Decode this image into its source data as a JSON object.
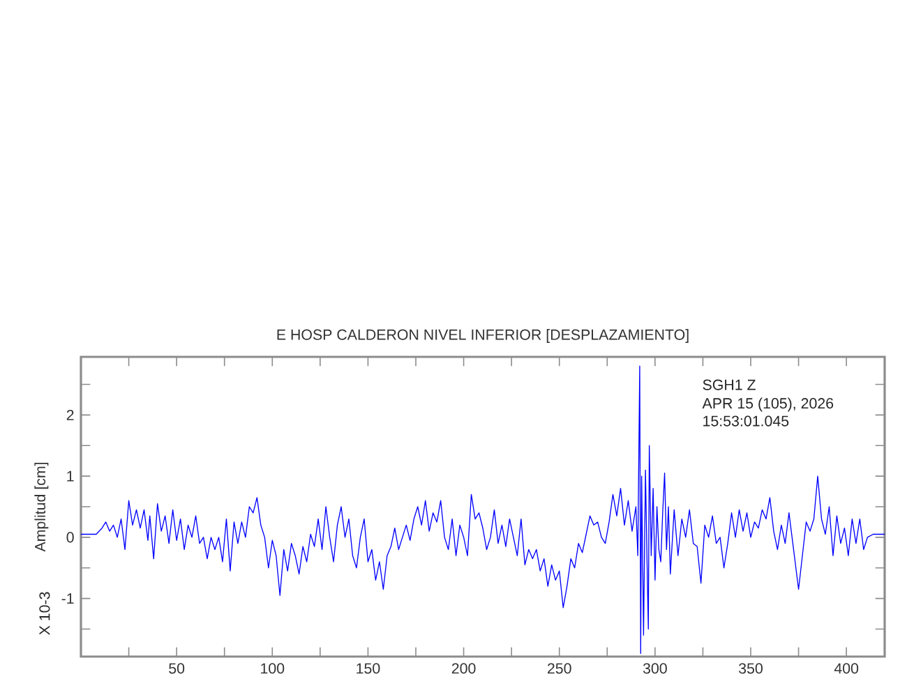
{
  "chart_data": {
    "type": "line",
    "title": "E HOSP CALDERON NIVEL INFERIOR [DESPLAZAMIENTO]",
    "ylabel": "Amplitud [cm]",
    "annotations": [
      "SGH1   Z",
      "APR 15 (105), 2026",
      "15:53:01.045",
      "X 10-3"
    ],
    "xlim": [
      0,
      420
    ],
    "ylim": [
      -1.95,
      2.95
    ],
    "xticks": [
      {
        "value": 25,
        "label": null
      },
      50,
      {
        "value": 75,
        "label": null
      },
      100,
      {
        "value": 125,
        "label": null
      },
      150,
      {
        "value": 175,
        "label": null
      },
      200,
      {
        "value": 225,
        "label": null
      },
      250,
      {
        "value": 275,
        "label": null
      },
      300,
      {
        "value": 325,
        "label": null
      },
      350,
      {
        "value": 375,
        "label": null
      },
      400
    ],
    "yticks": [
      {
        "value": -1.5,
        "label": null
      },
      -1,
      {
        "value": -0.5,
        "label": null
      },
      0,
      {
        "value": 0.5,
        "label": null
      },
      1,
      {
        "value": 1.5,
        "label": null
      },
      2,
      {
        "value": 2.5,
        "label": null
      }
    ],
    "grid": false,
    "marker": "none",
    "line_style": "solid",
    "series": [
      {
        "color": "#0000ff",
        "x": [
          0,
          8,
          11,
          13,
          15,
          17,
          19,
          21,
          23,
          25,
          27,
          29,
          31,
          33,
          35,
          36,
          38,
          40,
          42,
          44,
          46,
          48,
          50,
          52,
          54,
          56,
          58,
          60,
          62,
          64,
          66,
          68,
          70,
          72,
          74,
          76,
          78,
          80,
          82,
          84,
          86,
          88,
          90,
          92,
          94,
          96,
          98,
          100,
          102,
          104,
          106,
          108,
          110,
          112,
          114,
          116,
          118,
          120,
          122,
          124,
          126,
          128,
          130,
          132,
          134,
          136,
          138,
          140,
          142,
          144,
          146,
          148,
          150,
          152,
          154,
          156,
          158,
          160,
          162,
          164,
          166,
          168,
          170,
          172,
          174,
          176,
          178,
          180,
          182,
          184,
          186,
          188,
          190,
          192,
          194,
          196,
          198,
          200,
          202,
          204,
          206,
          208,
          210,
          212,
          214,
          216,
          218,
          220,
          222,
          224,
          226,
          228,
          230,
          232,
          234,
          236,
          238,
          240,
          242,
          244,
          246,
          248,
          250,
          252,
          254,
          256,
          258,
          260,
          262,
          264,
          266,
          268,
          270,
          272,
          274,
          276,
          278,
          280,
          282,
          284,
          286,
          288,
          290,
          291,
          292,
          292.5,
          293,
          294,
          295,
          296,
          296.5,
          297,
          298,
          299,
          300,
          301,
          302,
          303,
          304,
          305,
          306,
          307,
          308,
          310,
          312,
          314,
          316,
          318,
          320,
          322,
          324,
          326,
          328,
          330,
          332,
          334,
          336,
          338,
          340,
          342,
          344,
          346,
          348,
          350,
          352,
          354,
          356,
          358,
          360,
          362,
          364,
          366,
          368,
          370,
          372,
          374,
          375,
          377,
          379,
          381,
          383,
          385,
          387,
          389,
          391,
          393,
          395,
          397,
          399,
          401,
          403,
          405,
          407,
          409,
          411,
          414,
          420
        ],
        "values": [
          0.05,
          0.05,
          0.15,
          0.25,
          0.1,
          0.2,
          0.0,
          0.3,
          -0.2,
          0.6,
          0.2,
          0.45,
          0.15,
          0.45,
          -0.05,
          0.35,
          -0.35,
          0.55,
          0.1,
          0.35,
          -0.1,
          0.45,
          -0.05,
          0.3,
          -0.2,
          0.2,
          0.0,
          0.35,
          -0.1,
          0.0,
          -0.35,
          0.0,
          -0.2,
          0.0,
          -0.4,
          0.3,
          -0.55,
          0.25,
          -0.1,
          0.25,
          0.0,
          0.5,
          0.4,
          0.65,
          0.2,
          0.0,
          -0.5,
          -0.05,
          -0.3,
          -0.95,
          -0.2,
          -0.55,
          -0.1,
          -0.3,
          -0.6,
          -0.15,
          -0.4,
          0.05,
          -0.15,
          0.3,
          -0.2,
          0.5,
          0.0,
          -0.4,
          0.2,
          0.5,
          0.0,
          0.3,
          -0.3,
          -0.5,
          0.0,
          0.3,
          -0.4,
          -0.2,
          -0.7,
          -0.4,
          -0.85,
          -0.3,
          -0.15,
          0.15,
          -0.2,
          0.0,
          0.2,
          -0.05,
          0.3,
          0.5,
          0.2,
          0.6,
          0.1,
          0.4,
          0.25,
          0.6,
          0.0,
          -0.2,
          0.3,
          -0.3,
          0.2,
          0.0,
          -0.3,
          0.7,
          0.3,
          0.4,
          0.15,
          -0.2,
          0.0,
          0.45,
          -0.1,
          0.2,
          -0.15,
          0.3,
          0.0,
          -0.3,
          0.3,
          -0.45,
          -0.2,
          -0.35,
          -0.2,
          -0.55,
          -0.35,
          -0.8,
          -0.45,
          -0.7,
          -0.55,
          -1.15,
          -0.8,
          -0.35,
          -0.5,
          -0.1,
          -0.25,
          0.05,
          0.35,
          0.2,
          0.25,
          0.0,
          -0.1,
          0.25,
          0.7,
          0.35,
          0.8,
          0.2,
          0.6,
          0.1,
          0.5,
          -0.3,
          2.8,
          -1.9,
          1.0,
          -1.6,
          1.1,
          -0.7,
          -1.5,
          1.5,
          -0.3,
          0.8,
          -0.7,
          0.5,
          -0.2,
          -0.4,
          0.4,
          1.05,
          -0.2,
          0.5,
          -0.6,
          0.45,
          -0.3,
          0.3,
          0.0,
          0.45,
          -0.1,
          -0.15,
          -0.75,
          0.2,
          0.0,
          0.35,
          -0.1,
          0.0,
          -0.5,
          -0.1,
          0.4,
          0.0,
          0.45,
          0.1,
          0.4,
          0.0,
          0.25,
          0.15,
          0.45,
          0.3,
          0.65,
          0.1,
          -0.2,
          0.2,
          -0.1,
          0.4,
          -0.1,
          -0.6,
          -0.85,
          -0.3,
          0.25,
          0.1,
          0.3,
          1.0,
          0.3,
          0.05,
          0.5,
          -0.3,
          0.35,
          -0.1,
          0.15,
          -0.3,
          0.3,
          -0.1,
          0.3,
          -0.2,
          0.0,
          0.05,
          0.05
        ]
      }
    ]
  }
}
